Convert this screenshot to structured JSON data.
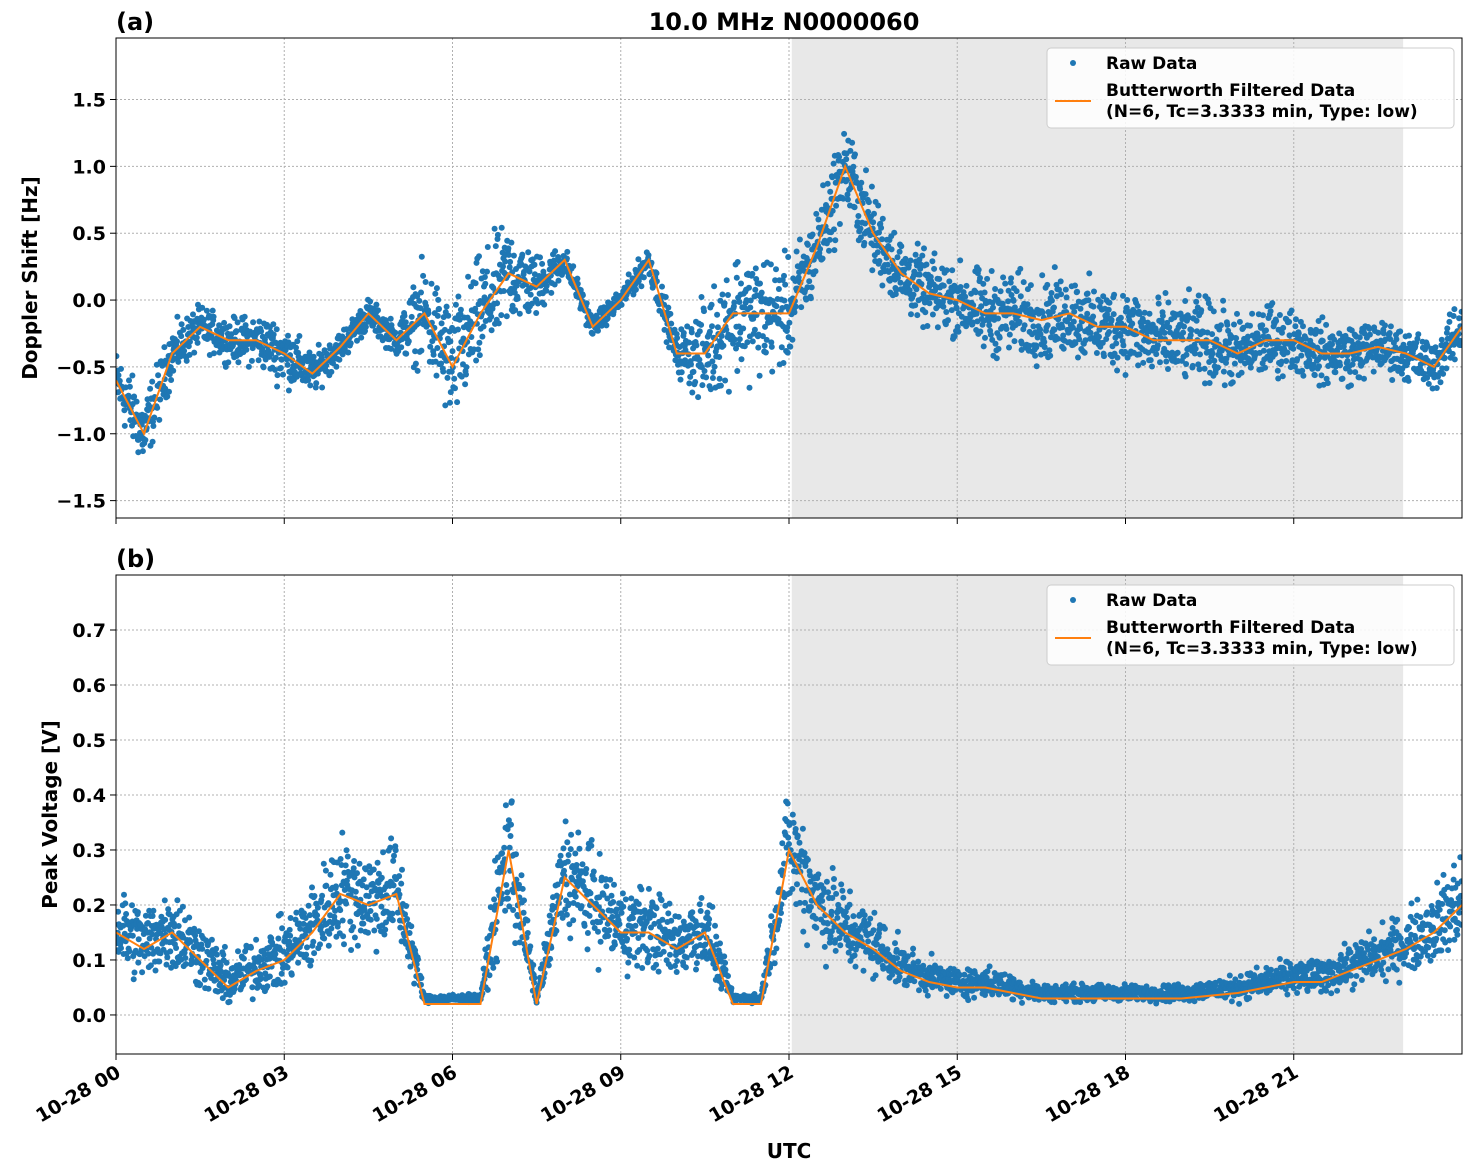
{
  "chart_data": {
    "title": "10.0 MHz N0000060",
    "xlabel": "UTC",
    "x_tick_labels": [
      "10-28 00",
      "10-28 03",
      "10-28 06",
      "10-28 09",
      "10-28 12",
      "10-28 15",
      "10-28 18",
      "10-28 21"
    ],
    "x_tick_hours": [
      0,
      3,
      6,
      9,
      12,
      15,
      18,
      21
    ],
    "xlim_hours": [
      0,
      24
    ],
    "shaded_region_hours": [
      12.05,
      22.95
    ],
    "grid": true,
    "colors": {
      "raw": "#1f77b4",
      "filtered": "#ff7f0e",
      "shade": "#e8e8e8"
    },
    "x_hours": [
      0,
      0.5,
      1,
      1.5,
      2,
      2.5,
      3,
      3.5,
      4,
      4.5,
      5,
      5.5,
      6,
      6.5,
      7,
      7.5,
      8,
      8.5,
      9,
      9.5,
      10,
      10.5,
      11,
      11.5,
      12,
      12.5,
      13,
      13.5,
      14,
      14.5,
      15,
      15.5,
      16,
      16.5,
      17,
      17.5,
      18,
      18.5,
      19,
      19.5,
      20,
      20.5,
      21,
      21.5,
      22,
      22.5,
      23,
      23.5,
      24
    ],
    "panels": [
      {
        "label": "(a)",
        "type": "scatter+line",
        "ylabel": "Doppler Shift [Hz]",
        "ylim": [
          -1.63,
          1.96
        ],
        "yticks": [
          -1.5,
          -1.0,
          -0.5,
          0.0,
          0.5,
          1.0,
          1.5
        ],
        "ytick_labels": [
          "−1.5",
          "−1.0",
          "−0.5",
          "0.0",
          "0.5",
          "1.0",
          "1.5"
        ],
        "legend": {
          "placement": "top-right",
          "entries": [
            "Raw Data",
            "Butterworth Filtered Data",
            "(N=6, Tc=3.3333 min, Type: low)"
          ]
        },
        "filtered": [
          -0.6,
          -1.0,
          -0.4,
          -0.2,
          -0.3,
          -0.3,
          -0.4,
          -0.55,
          -0.35,
          -0.1,
          -0.3,
          -0.1,
          -0.5,
          -0.1,
          0.2,
          0.1,
          0.3,
          -0.2,
          0.0,
          0.3,
          -0.4,
          -0.4,
          -0.1,
          -0.1,
          -0.1,
          0.4,
          1.0,
          0.5,
          0.2,
          0.05,
          0.0,
          -0.1,
          -0.1,
          -0.15,
          -0.1,
          -0.2,
          -0.2,
          -0.3,
          -0.3,
          -0.3,
          -0.4,
          -0.3,
          -0.3,
          -0.4,
          -0.4,
          -0.35,
          -0.4,
          -0.5,
          -0.2
        ],
        "raw_spread": [
          0.3,
          0.35,
          0.25,
          0.2,
          0.2,
          0.25,
          0.3,
          0.2,
          0.15,
          0.15,
          0.15,
          0.5,
          0.6,
          0.55,
          0.5,
          0.3,
          0.15,
          0.1,
          0.1,
          0.15,
          0.2,
          0.5,
          0.6,
          0.6,
          0.5,
          0.4,
          0.45,
          0.4,
          0.35,
          0.35,
          0.35,
          0.4,
          0.4,
          0.4,
          0.4,
          0.4,
          0.4,
          0.4,
          0.4,
          0.4,
          0.35,
          0.35,
          0.3,
          0.3,
          0.3,
          0.25,
          0.25,
          0.25,
          0.25
        ]
      },
      {
        "label": "(b)",
        "type": "scatter+line",
        "ylabel": "Peak Voltage [V]",
        "ylim": [
          -0.071,
          0.8
        ],
        "yticks": [
          0.0,
          0.1,
          0.2,
          0.3,
          0.4,
          0.5,
          0.6,
          0.7
        ],
        "ytick_labels": [
          "0.0",
          "0.1",
          "0.2",
          "0.3",
          "0.4",
          "0.5",
          "0.6",
          "0.7"
        ],
        "legend": {
          "placement": "top-right",
          "entries": [
            "Raw Data",
            "Butterworth Filtered Data",
            "(N=6, Tc=3.3333 min, Type: low)"
          ]
        },
        "filtered": [
          0.15,
          0.12,
          0.15,
          0.1,
          0.05,
          0.08,
          0.1,
          0.15,
          0.22,
          0.2,
          0.22,
          0.02,
          0.02,
          0.02,
          0.3,
          0.02,
          0.25,
          0.2,
          0.15,
          0.15,
          0.12,
          0.15,
          0.02,
          0.02,
          0.3,
          0.2,
          0.15,
          0.12,
          0.08,
          0.06,
          0.05,
          0.05,
          0.04,
          0.03,
          0.03,
          0.03,
          0.03,
          0.03,
          0.03,
          0.035,
          0.04,
          0.05,
          0.06,
          0.06,
          0.08,
          0.1,
          0.12,
          0.15,
          0.2
        ],
        "raw_spread": [
          0.1,
          0.09,
          0.1,
          0.08,
          0.06,
          0.07,
          0.08,
          0.1,
          0.13,
          0.12,
          0.13,
          0.01,
          0.01,
          0.01,
          0.2,
          0.01,
          0.14,
          0.12,
          0.1,
          0.1,
          0.08,
          0.1,
          0.01,
          0.01,
          0.15,
          0.12,
          0.1,
          0.08,
          0.05,
          0.04,
          0.035,
          0.035,
          0.03,
          0.02,
          0.02,
          0.02,
          0.02,
          0.02,
          0.02,
          0.025,
          0.03,
          0.035,
          0.04,
          0.04,
          0.05,
          0.06,
          0.07,
          0.09,
          0.12
        ]
      }
    ]
  }
}
